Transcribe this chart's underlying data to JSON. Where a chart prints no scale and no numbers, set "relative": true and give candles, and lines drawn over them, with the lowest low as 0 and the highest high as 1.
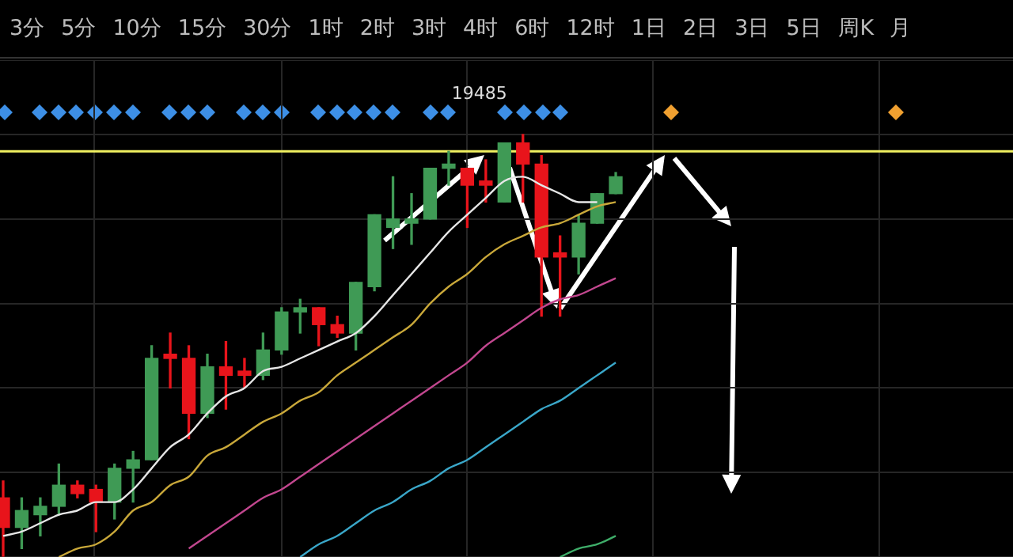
{
  "chart_data": {
    "type": "candlestick",
    "relative": true,
    "grid": true,
    "legend": false,
    "categories": [
      null,
      null,
      null,
      null,
      null,
      null,
      null,
      null,
      null,
      null,
      null,
      null,
      null,
      null,
      null,
      null,
      null,
      null,
      null,
      null,
      null,
      null,
      null,
      null,
      null,
      null,
      null,
      null,
      null,
      null,
      null,
      null,
      null,
      null
    ],
    "ohlc": [
      [
        0.14,
        0.18,
        0,
        0.07
      ],
      [
        0.07,
        0.14,
        0.02,
        0.11
      ],
      [
        0.1,
        0.14,
        0.05,
        0.12
      ],
      [
        0.12,
        0.22,
        0.1,
        0.17
      ],
      [
        0.17,
        0.18,
        0.14,
        0.15
      ],
      [
        0.16,
        0.17,
        0.06,
        0.13
      ],
      [
        0.13,
        0.22,
        0.09,
        0.21
      ],
      [
        0.21,
        0.25,
        0.13,
        0.23
      ],
      [
        0.23,
        0.5,
        0.23,
        0.47
      ],
      [
        0.48,
        0.53,
        0.4,
        0.47
      ],
      [
        0.47,
        0.5,
        0.28,
        0.34
      ],
      [
        0.34,
        0.48,
        0.33,
        0.45
      ],
      [
        0.45,
        0.51,
        0.35,
        0.43
      ],
      [
        0.44,
        0.47,
        0.4,
        0.43
      ],
      [
        0.43,
        0.53,
        0.42,
        0.49
      ],
      [
        0.49,
        0.59,
        0.48,
        0.58
      ],
      [
        0.58,
        0.61,
        0.53,
        0.59
      ],
      [
        0.59,
        0.59,
        0.5,
        0.55
      ],
      [
        0.55,
        0.57,
        0.52,
        0.53
      ],
      [
        0.53,
        0.65,
        0.49,
        0.65
      ],
      [
        0.64,
        0.81,
        0.63,
        0.81
      ],
      [
        0.78,
        0.9,
        0.73,
        0.8
      ],
      [
        0.79,
        0.86,
        0.74,
        0.8
      ],
      [
        0.8,
        0.92,
        0.8,
        0.92
      ],
      [
        0.92,
        0.96,
        0.88,
        0.93
      ],
      [
        0.92,
        0.92,
        0.78,
        0.88
      ],
      [
        0.89,
        0.94,
        0.84,
        0.88
      ],
      [
        0.84,
        0.98,
        0.84,
        0.98
      ],
      [
        0.98,
        1,
        0.84,
        0.93
      ],
      [
        0.93,
        0.95,
        0.57,
        0.71
      ],
      [
        0.72,
        0.76,
        0.57,
        0.71
      ],
      [
        0.71,
        0.81,
        0.67,
        0.79
      ],
      [
        0.79,
        0.86,
        0.79,
        0.86
      ],
      [
        0.86,
        0.91,
        0.86,
        0.9
      ]
    ],
    "colors": [
      "#e8141b",
      "#3f9a55",
      "#3f9a55",
      "#3f9a55",
      "#e8141b",
      "#e8141b",
      "#3f9a55",
      "#3f9a55",
      "#3f9a55",
      "#e8141b",
      "#e8141b",
      "#3f9a55",
      "#e8141b",
      "#e8141b",
      "#3f9a55",
      "#3f9a55",
      "#3f9a55",
      "#e8141b",
      "#e8141b",
      "#3f9a55",
      "#3f9a55",
      "#3f9a55",
      "#3f9a55",
      "#3f9a55",
      "#3f9a55",
      "#e8141b",
      "#e8141b",
      "#3f9a55",
      "#e8141b",
      "#e8141b",
      "#e8141b",
      "#3f9a55",
      "#3f9a55",
      "#3f9a55"
    ],
    "series": [
      {
        "type": "line",
        "color": "#e6e6e6",
        "values": [
          0.05,
          0.06,
          0.08,
          0.1,
          0.11,
          0.13,
          0.13,
          0.16,
          0.21,
          0.26,
          0.29,
          0.34,
          0.38,
          0.4,
          0.44,
          0.45,
          0.47,
          0.49,
          0.51,
          0.53,
          0.57,
          0.62,
          0.67,
          0.72,
          0.77,
          0.81,
          0.85,
          0.89,
          0.9,
          0.88,
          0.86,
          0.84,
          0.84,
          null
        ]
      },
      {
        "type": "line",
        "color": "#c9a83a",
        "values": [
          null,
          null,
          null,
          0,
          0.02,
          0.03,
          0.06,
          0.11,
          0.13,
          0.17,
          0.19,
          0.24,
          0.26,
          0.29,
          0.32,
          0.34,
          0.37,
          0.39,
          0.43,
          0.46,
          0.49,
          0.52,
          0.55,
          0.6,
          0.64,
          0.67,
          0.71,
          0.74,
          0.76,
          0.78,
          0.79,
          0.81,
          0.83,
          0.84
        ]
      },
      {
        "type": "line",
        "color": "#c2478f",
        "values": [
          null,
          null,
          null,
          null,
          null,
          null,
          null,
          null,
          null,
          null,
          0.02,
          0.05,
          0.08,
          0.11,
          0.14,
          0.16,
          0.19,
          0.22,
          0.25,
          0.28,
          0.31,
          0.34,
          0.37,
          0.4,
          0.43,
          0.46,
          0.5,
          0.53,
          0.56,
          0.59,
          0.61,
          0.62,
          0.64,
          0.66
        ]
      },
      {
        "type": "line",
        "color": "#3aa7c9",
        "values": [
          null,
          null,
          null,
          null,
          null,
          null,
          null,
          null,
          null,
          null,
          null,
          null,
          null,
          null,
          null,
          null,
          0,
          0.03,
          0.05,
          0.08,
          0.11,
          0.13,
          0.16,
          0.18,
          0.21,
          0.23,
          0.26,
          0.29,
          0.32,
          0.35,
          0.37,
          0.4,
          0.43,
          0.46
        ]
      },
      {
        "type": "line",
        "color": "#3fae6a",
        "values": [
          null,
          null,
          null,
          null,
          null,
          null,
          null,
          null,
          null,
          null,
          null,
          null,
          null,
          null,
          null,
          null,
          null,
          null,
          null,
          null,
          null,
          null,
          null,
          null,
          null,
          null,
          null,
          null,
          null,
          null,
          0,
          0.02,
          0.03,
          0.05
        ]
      }
    ],
    "ref_lines": [
      {
        "axis": "y",
        "value": 0.96,
        "color": "#f0f060"
      }
    ],
    "annotations": [
      "19485",
      "3分",
      "5分",
      "10分",
      "15分",
      "30分",
      "1时",
      "2时",
      "3时",
      "4时",
      "6时",
      "12时",
      "1日",
      "2日",
      "3日",
      "5日",
      "周K",
      "月"
    ]
  }
}
